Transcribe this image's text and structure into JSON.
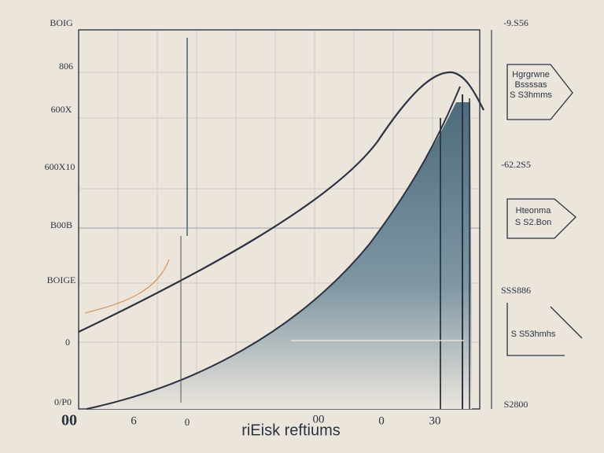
{
  "left_axis": {
    "labels": [
      "BOIG",
      "806",
      "600X",
      "600X10",
      "B00B",
      "BOIGE",
      "0",
      "0/P0"
    ]
  },
  "bottom_axis": {
    "labels": [
      "00",
      "6",
      "0",
      "00",
      "0",
      "30"
    ],
    "title": "riEisk reftiums"
  },
  "right_axis": {
    "labels": [
      "-9.S56",
      "-62.2S5",
      "SSS886",
      "S2800"
    ]
  },
  "callouts": [
    {
      "lines": [
        "Hgrgrwne",
        "Bssssas",
        "S S3hmms"
      ]
    },
    {
      "lines": [
        "Hteonma",
        "S S2.Bon"
      ]
    },
    {
      "lines": [
        "S S53hmhs"
      ]
    }
  ]
}
